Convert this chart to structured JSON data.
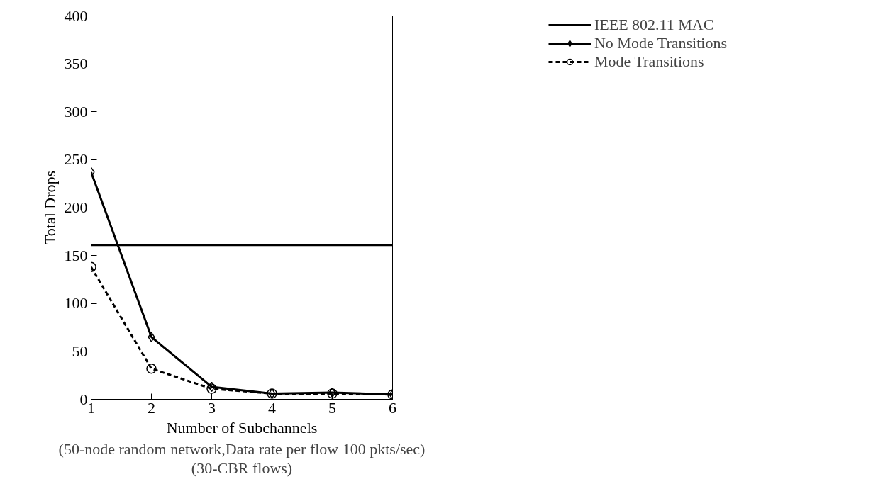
{
  "chart_data": {
    "type": "line",
    "xlabel": "Number of Subchannels",
    "ylabel": "Total Drops",
    "annotations": [
      "(50-node random network,Data rate per flow 100 pkts/sec)",
      "(30-CBR flows)"
    ],
    "x": [
      1,
      2,
      3,
      4,
      5,
      6
    ],
    "series": [
      {
        "name": "IEEE 802.11 MAC",
        "color": "#000000",
        "x": [
          1,
          6
        ],
        "values": [
          161,
          161
        ],
        "marker": "none",
        "line_style": "solid"
      },
      {
        "name": "No Mode Transitions",
        "color": "#000000",
        "values": [
          237,
          65,
          13,
          6,
          7,
          5
        ],
        "marker": "diamond",
        "line_style": "solid"
      },
      {
        "name": "Mode Transitions",
        "color": "#000000",
        "values": [
          138,
          32,
          11,
          6,
          6,
          5
        ],
        "marker": "circle",
        "line_style": "dashed"
      }
    ],
    "xlim": [
      1,
      6
    ],
    "ylim": [
      0,
      400
    ],
    "xticks": [
      1,
      2,
      3,
      4,
      5,
      6
    ],
    "yticks": [
      0,
      50,
      100,
      150,
      200,
      250,
      300,
      350,
      400
    ],
    "grid": false,
    "legend": "top right"
  }
}
